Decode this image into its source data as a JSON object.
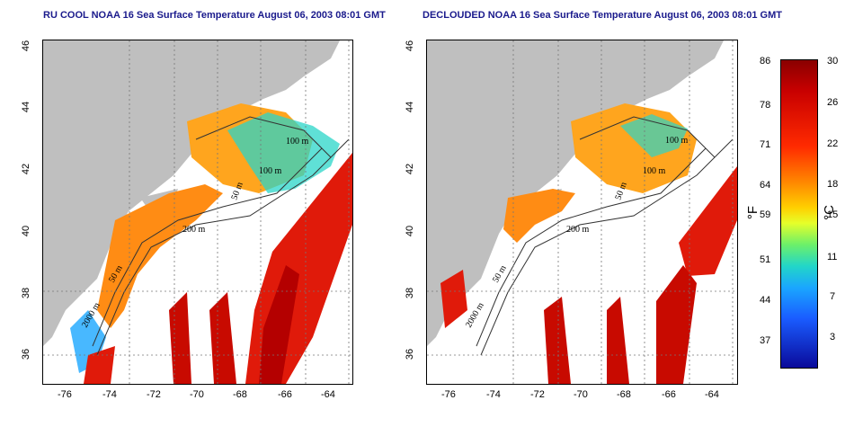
{
  "left_panel": {
    "title": "RU COOL NOAA 16 Sea Surface Temperature August 06, 2003 08:01 GMT",
    "contour_labels": [
      "100 m",
      "100 m",
      "50 m",
      "200 m",
      "50 m",
      "2000 m"
    ]
  },
  "right_panel": {
    "title": "DECLOUDED NOAA 16 Sea Surface Temperature August 06, 2003 08:01 GMT",
    "contour_labels": [
      "100 m",
      "100 m",
      "50 m",
      "200 m",
      "50 m",
      "2000 m"
    ]
  },
  "axes": {
    "x_ticks": [
      "-76",
      "-74",
      "-72",
      "-70",
      "-68",
      "-66",
      "-64"
    ],
    "y_ticks": [
      "46",
      "44",
      "42",
      "40",
      "38",
      "36"
    ]
  },
  "colorbar": {
    "fahrenheit_ticks": [
      "86",
      "78",
      "71",
      "64",
      "59",
      "51",
      "44",
      "37"
    ],
    "celsius_ticks": [
      "30",
      "26",
      "22",
      "18",
      "15",
      "11",
      "7",
      "3"
    ],
    "fahrenheit_unit": "°F",
    "celsius_unit": "°C"
  },
  "colors": {
    "land": "#bfbfbf",
    "warm": "#e01a0a",
    "hot": "#b40000",
    "mid": "#ff8c14",
    "cool": "#2ad6c8",
    "contour": "#333333"
  }
}
